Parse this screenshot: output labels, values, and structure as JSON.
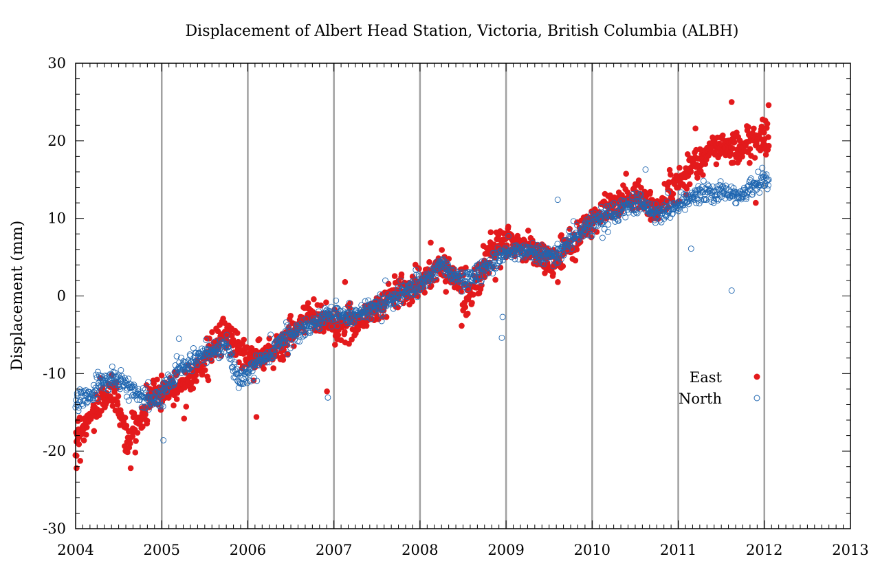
{
  "chart_data": {
    "type": "scatter",
    "title": "Displacement of Albert Head Station, Victoria, British Columbia (ALBH)",
    "xlabel": "",
    "ylabel": "Displacement (mm)",
    "xlim": [
      2004,
      2013
    ],
    "ylim": [
      -30,
      30
    ],
    "x_ticks": [
      2004,
      2005,
      2006,
      2007,
      2008,
      2009,
      2010,
      2011,
      2012,
      2013
    ],
    "y_ticks": [
      -30,
      -20,
      -10,
      0,
      10,
      20,
      30
    ],
    "x_tick_labels": [
      "2004",
      "2005",
      "2006",
      "2007",
      "2008",
      "2009",
      "2010",
      "2011",
      "2012",
      "2013"
    ],
    "y_tick_labels": [
      "-30",
      "-20",
      "-10",
      "0",
      "10",
      "20",
      "30"
    ],
    "vertical_lines": [
      2005,
      2006,
      2007,
      2008,
      2009,
      2010,
      2011,
      2012
    ],
    "legend_position": "right",
    "series": [
      {
        "name": "East",
        "marker": "filled-circle",
        "color": "#e31a1c",
        "trend_knots": [
          [
            2004.0,
            -18.0
          ],
          [
            2004.15,
            -16.0
          ],
          [
            2004.3,
            -13.5
          ],
          [
            2004.45,
            -12.0
          ],
          [
            2004.6,
            -18.5
          ],
          [
            2004.75,
            -16.0
          ],
          [
            2004.9,
            -12.5
          ],
          [
            2005.2,
            -11.5
          ],
          [
            2005.5,
            -8.5
          ],
          [
            2005.75,
            -4.5
          ],
          [
            2005.9,
            -7.0
          ],
          [
            2006.1,
            -8.0
          ],
          [
            2006.4,
            -6.5
          ],
          [
            2006.7,
            -2.5
          ],
          [
            2006.9,
            -3.0
          ],
          [
            2007.1,
            -4.0
          ],
          [
            2007.4,
            -2.5
          ],
          [
            2007.7,
            0.5
          ],
          [
            2008.0,
            1.5
          ],
          [
            2008.25,
            4.0
          ],
          [
            2008.4,
            2.5
          ],
          [
            2008.55,
            0.0
          ],
          [
            2008.75,
            4.0
          ],
          [
            2009.0,
            7.0
          ],
          [
            2009.3,
            6.0
          ],
          [
            2009.55,
            4.0
          ],
          [
            2009.75,
            6.5
          ],
          [
            2010.0,
            10.0
          ],
          [
            2010.3,
            12.0
          ],
          [
            2010.55,
            13.0
          ],
          [
            2010.75,
            11.0
          ],
          [
            2010.95,
            14.0
          ],
          [
            2011.2,
            17.5
          ],
          [
            2011.5,
            19.5
          ],
          [
            2011.7,
            19.0
          ],
          [
            2011.85,
            20.0
          ],
          [
            2012.05,
            20.5
          ]
        ],
        "spread": 1.3,
        "count": 1500,
        "outliers": [
          [
            2004.01,
            -22.2
          ],
          [
            2004.01,
            -20.6
          ],
          [
            2004.64,
            -22.2
          ],
          [
            2005.26,
            -15.8
          ],
          [
            2006.1,
            -15.6
          ],
          [
            2006.92,
            -12.3
          ],
          [
            2007.13,
            1.8
          ],
          [
            2011.62,
            25.0
          ],
          [
            2012.05,
            24.6
          ],
          [
            2011.2,
            21.6
          ],
          [
            2011.9,
            12.0
          ],
          [
            2009.0,
            5.0
          ]
        ]
      },
      {
        "name": "North",
        "marker": "open-circle",
        "color": "#1f66b0",
        "trend_knots": [
          [
            2004.0,
            -13.5
          ],
          [
            2004.15,
            -13.0
          ],
          [
            2004.3,
            -11.0
          ],
          [
            2004.5,
            -10.5
          ],
          [
            2004.7,
            -12.5
          ],
          [
            2004.9,
            -13.5
          ],
          [
            2005.2,
            -9.5
          ],
          [
            2005.5,
            -7.5
          ],
          [
            2005.75,
            -6.5
          ],
          [
            2005.9,
            -11.0
          ],
          [
            2006.1,
            -9.0
          ],
          [
            2006.4,
            -5.5
          ],
          [
            2006.7,
            -4.0
          ],
          [
            2006.9,
            -2.5
          ],
          [
            2007.2,
            -2.5
          ],
          [
            2007.45,
            -1.5
          ],
          [
            2007.75,
            0.0
          ],
          [
            2008.0,
            1.5
          ],
          [
            2008.25,
            4.0
          ],
          [
            2008.4,
            2.5
          ],
          [
            2008.55,
            2.0
          ],
          [
            2008.75,
            3.5
          ],
          [
            2009.0,
            5.5
          ],
          [
            2009.3,
            6.0
          ],
          [
            2009.55,
            5.0
          ],
          [
            2009.75,
            7.0
          ],
          [
            2010.0,
            9.5
          ],
          [
            2010.3,
            11.0
          ],
          [
            2010.55,
            12.0
          ],
          [
            2010.75,
            10.5
          ],
          [
            2010.95,
            11.5
          ],
          [
            2011.2,
            13.0
          ],
          [
            2011.5,
            13.5
          ],
          [
            2011.7,
            13.0
          ],
          [
            2011.85,
            14.0
          ],
          [
            2012.05,
            15.0
          ]
        ],
        "spread": 0.8,
        "count": 1500,
        "outliers": [
          [
            2005.02,
            -18.6
          ],
          [
            2006.93,
            -13.1
          ],
          [
            2008.95,
            -5.4
          ],
          [
            2008.96,
            -2.7
          ],
          [
            2010.12,
            7.5
          ],
          [
            2011.15,
            6.1
          ],
          [
            2011.62,
            0.7
          ],
          [
            2010.62,
            16.3
          ],
          [
            2009.6,
            12.4
          ],
          [
            2005.2,
            -5.5
          ]
        ]
      }
    ]
  }
}
